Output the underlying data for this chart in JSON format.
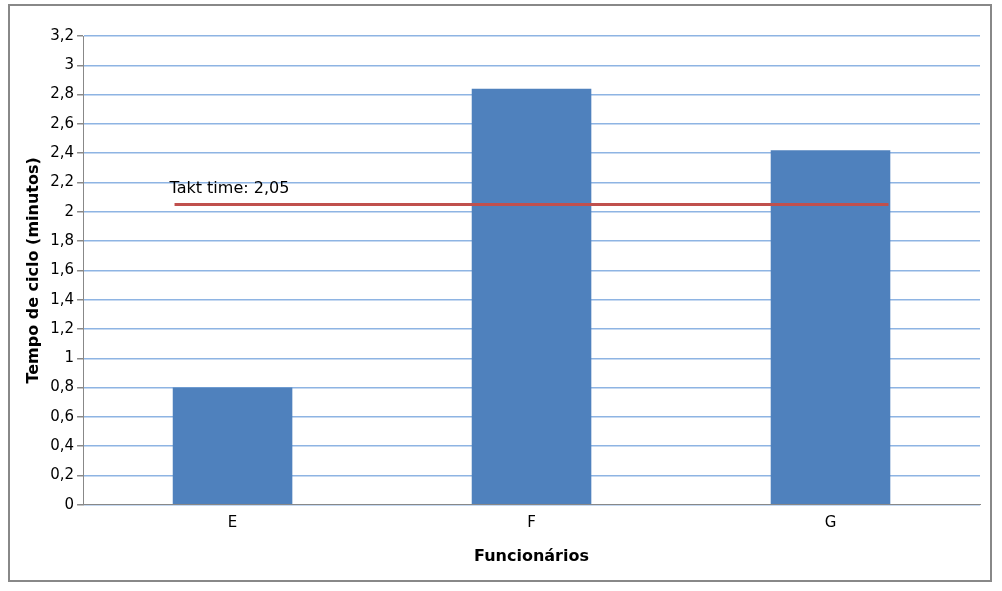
{
  "chart_data": {
    "type": "bar",
    "xlabel": "Funcionários",
    "ylabel": "Tempo de ciclo (minutos)",
    "categories": [
      "E",
      "F",
      "G"
    ],
    "series": [
      {
        "color": "#4f81bd",
        "values": [
          0.8,
          2.84,
          2.42
        ]
      }
    ],
    "ylim": [
      0,
      3.2
    ],
    "yticks": [
      0,
      {
        "value": 0.2,
        "label": "0,2"
      },
      {
        "value": 0.4,
        "label": "0,4"
      },
      {
        "value": 0.6,
        "label": "0,6"
      },
      {
        "value": 0.8,
        "label": "0,8"
      },
      1,
      {
        "value": 1.2,
        "label": "1,2"
      },
      {
        "value": 1.4,
        "label": "1,4"
      },
      {
        "value": 1.6,
        "label": "1,6"
      },
      {
        "value": 1.8,
        "label": "1,8"
      },
      2,
      {
        "value": 2.2,
        "label": "2,2"
      },
      {
        "value": 2.4,
        "label": "2,4"
      },
      {
        "value": 2.6,
        "label": "2,6"
      },
      {
        "value": 2.8,
        "label": "2,8"
      },
      3,
      {
        "value": 3.2,
        "label": "3,2"
      }
    ],
    "ref_lines": [
      {
        "axis": "y",
        "value": 2.05,
        "label": "Takt time: 2,05",
        "color": "#c0504d"
      }
    ],
    "grid": "y",
    "legend": false
  }
}
